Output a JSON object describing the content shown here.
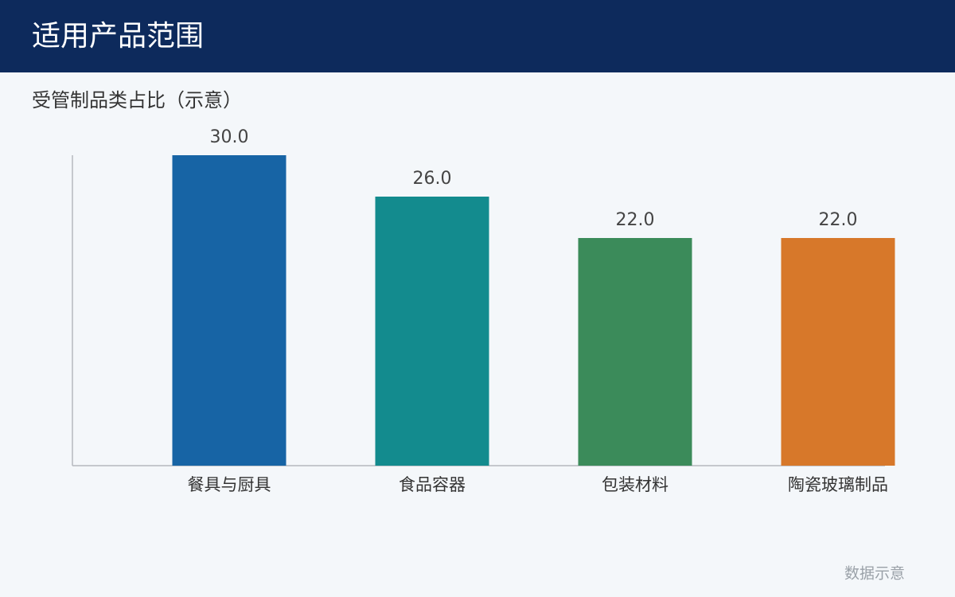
{
  "header": {
    "title": "适用产品范围"
  },
  "chart_data": {
    "type": "bar",
    "title": "受管制品类占比（示意）",
    "categories": [
      "餐具与厨具",
      "食品容器",
      "包装材料",
      "陶瓷玻璃制品"
    ],
    "values": [
      30,
      26,
      22,
      22
    ],
    "value_labels": [
      "30.0",
      "26.0",
      "22.0",
      "22.0"
    ],
    "colors": [
      "#1764a5",
      "#138b8e",
      "#3b8b5a",
      "#d7782a"
    ],
    "ylim": [
      0,
      30
    ]
  },
  "footer": {
    "note": "数据示意"
  }
}
